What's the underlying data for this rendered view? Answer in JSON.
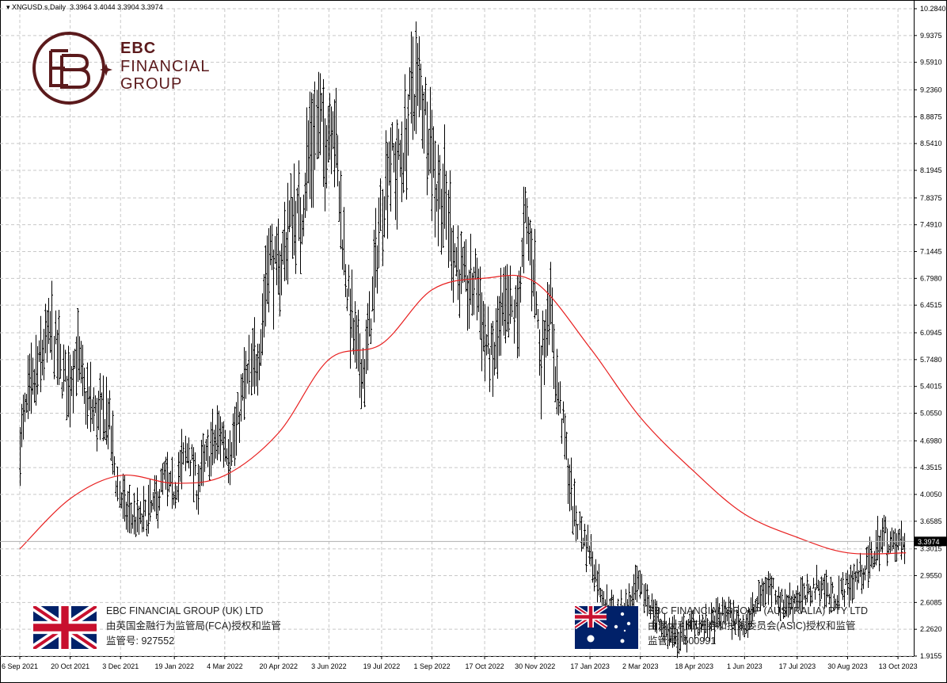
{
  "header": {
    "symbol": "XNGUSD.s,Daily",
    "ohlc": "3.3964 3.4044 3.3904 3.3974"
  },
  "brand": {
    "line1": "EBC",
    "line2": "FINANCIAL",
    "line3": "GROUP",
    "color": "#5b1a1c"
  },
  "regulators": [
    {
      "name": "EBC FINANCIAL GROUP (UK) LTD",
      "text": "由英国金融行为监管局(FCA)授权和监管",
      "license": "监管号: 927552",
      "flag": "uk-flag-icon"
    },
    {
      "name": "EBC FINANCIAL GROUP (AUSTRALIA) PTY LTD",
      "text": "由澳大利亚证券和投资委员会(ASIC)授权和监管",
      "license": "监管号: 500991",
      "flag": "australia-flag-icon"
    }
  ],
  "chart_data": {
    "type": "candlestick",
    "title": "XNGUSD.s,Daily",
    "y_axis_side": "right",
    "ylim": [
      1.9155,
      10.284
    ],
    "y_ticks": [
      "10.2840",
      "9.9375",
      "9.5910",
      "9.2360",
      "8.8875",
      "8.5410",
      "8.1945",
      "7.8375",
      "7.4910",
      "7.1445",
      "6.7980",
      "6.4515",
      "6.0945",
      "5.7480",
      "5.4015",
      "5.0550",
      "4.6980",
      "4.3515",
      "4.0050",
      "3.6585",
      "3.3015",
      "2.9550",
      "2.6085",
      "2.2620",
      "1.9155"
    ],
    "x_ticks": [
      "6 Sep 2021",
      "20 Oct 2021",
      "3 Dec 2021",
      "19 Jan 2022",
      "4 Mar 2022",
      "20 Apr 2022",
      "3 Jun 2022",
      "19 Jul 2022",
      "1 Sep 2022",
      "17 Oct 2022",
      "30 Nov 2022",
      "17 Jan 2023",
      "2 Mar 2023",
      "18 Apr 2023",
      "1 Jun 2023",
      "17 Jul 2023",
      "30 Aug 2023",
      "13 Oct 2023"
    ],
    "last_price": "3.3974",
    "grid": true,
    "price_series": [
      [
        "6 Sep 2021",
        4.7
      ],
      [
        "13 Sep 2021",
        5.2
      ],
      [
        "20 Sep 2021",
        5.5
      ],
      [
        "27 Sep 2021",
        5.9
      ],
      [
        "4 Oct 2021",
        6.1
      ],
      [
        "11 Oct 2021",
        5.6
      ],
      [
        "18 Oct 2021",
        5.4
      ],
      [
        "25 Oct 2021",
        5.85
      ],
      [
        "1 Nov 2021",
        5.3
      ],
      [
        "8 Nov 2021",
        5.1
      ],
      [
        "15 Nov 2021",
        5.0
      ],
      [
        "22 Nov 2021",
        5.05
      ],
      [
        "29 Nov 2021",
        4.2
      ],
      [
        "6 Dec 2021",
        3.8
      ],
      [
        "13 Dec 2021",
        3.7
      ],
      [
        "20 Dec 2021",
        3.65
      ],
      [
        "27 Dec 2021",
        3.75
      ],
      [
        "3 Jan 2022",
        3.9
      ],
      [
        "10 Jan 2022",
        4.2
      ],
      [
        "17 Jan 2022",
        4.0
      ],
      [
        "24 Jan 2022",
        4.3
      ],
      [
        "31 Jan 2022",
        4.6
      ],
      [
        "7 Feb 2022",
        4.1
      ],
      [
        "14 Feb 2022",
        4.4
      ],
      [
        "21 Feb 2022",
        4.6
      ],
      [
        "28 Feb 2022",
        4.8
      ],
      [
        "7 Mar 2022",
        4.6
      ],
      [
        "14 Mar 2022",
        4.8
      ],
      [
        "21 Mar 2022",
        5.4
      ],
      [
        "28 Mar 2022",
        5.6
      ],
      [
        "4 Apr 2022",
        6.0
      ],
      [
        "11 Apr 2022",
        7.2
      ],
      [
        "18 Apr 2022",
        6.8
      ],
      [
        "25 Apr 2022",
        7.2
      ],
      [
        "2 May 2022",
        7.7
      ],
      [
        "9 May 2022",
        7.5
      ],
      [
        "16 May 2022",
        8.4
      ],
      [
        "23 May 2022",
        8.8
      ],
      [
        "30 May 2022",
        8.6
      ],
      [
        "6 Jun 2022",
        9.0
      ],
      [
        "13 Jun 2022",
        7.6
      ],
      [
        "20 Jun 2022",
        6.5
      ],
      [
        "27 Jun 2022",
        5.8
      ],
      [
        "4 Jul 2022",
        5.6
      ],
      [
        "11 Jul 2022",
        6.5
      ],
      [
        "18 Jul 2022",
        7.6
      ],
      [
        "25 Jul 2022",
        8.4
      ],
      [
        "1 Aug 2022",
        8.2
      ],
      [
        "8 Aug 2022",
        8.5
      ],
      [
        "15 Aug 2022",
        9.3
      ],
      [
        "22 Aug 2022",
        9.2
      ],
      [
        "29 Aug 2022",
        8.8
      ],
      [
        "5 Sep 2022",
        8.0
      ],
      [
        "12 Sep 2022",
        7.8
      ],
      [
        "19 Sep 2022",
        7.2
      ],
      [
        "26 Sep 2022",
        6.8
      ],
      [
        "3 Oct 2022",
        6.6
      ],
      [
        "10 Oct 2022",
        6.8
      ],
      [
        "17 Oct 2022",
        6.0
      ],
      [
        "24 Oct 2022",
        5.7
      ],
      [
        "31 Oct 2022",
        6.2
      ],
      [
        "7 Nov 2022",
        6.4
      ],
      [
        "14 Nov 2022",
        6.3
      ],
      [
        "21 Nov 2022",
        7.5
      ],
      [
        "28 Nov 2022",
        7.0
      ],
      [
        "5 Dec 2022",
        5.7
      ],
      [
        "12 Dec 2022",
        6.6
      ],
      [
        "19 Dec 2022",
        5.4
      ],
      [
        "26 Dec 2022",
        4.7
      ],
      [
        "2 Jan 2023",
        3.8
      ],
      [
        "9 Jan 2023",
        3.5
      ],
      [
        "16 Jan 2023",
        3.3
      ],
      [
        "23 Jan 2023",
        2.9
      ],
      [
        "30 Jan 2023",
        2.6
      ],
      [
        "6 Feb 2023",
        2.5
      ],
      [
        "13 Feb 2023",
        2.55
      ],
      [
        "20 Feb 2023",
        2.6
      ],
      [
        "27 Feb 2023",
        2.8
      ],
      [
        "6 Mar 2023",
        2.7
      ],
      [
        "13 Mar 2023",
        2.5
      ],
      [
        "20 Mar 2023",
        2.3
      ],
      [
        "27 Mar 2023",
        2.2
      ],
      [
        "3 Apr 2023",
        2.15
      ],
      [
        "10 Apr 2023",
        2.2
      ],
      [
        "17 Apr 2023",
        2.35
      ],
      [
        "24 Apr 2023",
        2.3
      ],
      [
        "1 May 2023",
        2.3
      ],
      [
        "8 May 2023",
        2.4
      ],
      [
        "15 May 2023",
        2.5
      ],
      [
        "22 May 2023",
        2.4
      ],
      [
        "29 May 2023",
        2.3
      ],
      [
        "5 Jun 2023",
        2.4
      ],
      [
        "12 Jun 2023",
        2.6
      ],
      [
        "19 Jun 2023",
        2.8
      ],
      [
        "26 Jun 2023",
        2.8
      ],
      [
        "3 Jul 2023",
        2.6
      ],
      [
        "10 Jul 2023",
        2.6
      ],
      [
        "17 Jul 2023",
        2.7
      ],
      [
        "24 Jul 2023",
        2.65
      ],
      [
        "31 Jul 2023",
        2.8
      ],
      [
        "7 Aug 2023",
        2.85
      ],
      [
        "14 Aug 2023",
        2.7
      ],
      [
        "21 Aug 2023",
        2.7
      ],
      [
        "28 Aug 2023",
        2.8
      ],
      [
        "4 Sep 2023",
        2.9
      ],
      [
        "11 Sep 2023",
        3.0
      ],
      [
        "18 Sep 2023",
        3.1
      ],
      [
        "25 Sep 2023",
        3.35
      ],
      [
        "2 Oct 2023",
        3.5
      ],
      [
        "9 Oct 2023",
        3.3
      ],
      [
        "16 Oct 2023",
        3.4
      ],
      [
        "20 Oct 2023",
        3.4
      ]
    ],
    "moving_average": {
      "color": "#e82020",
      "points": [
        [
          "6 Sep 2021",
          3.3
        ],
        [
          "20 Oct 2021",
          3.95
        ],
        [
          "3 Dec 2021",
          4.25
        ],
        [
          "19 Jan 2022",
          4.15
        ],
        [
          "4 Mar 2022",
          4.25
        ],
        [
          "20 Apr 2022",
          4.8
        ],
        [
          "3 Jun 2022",
          5.75
        ],
        [
          "19 Jul 2022",
          5.95
        ],
        [
          "1 Sep 2022",
          6.65
        ],
        [
          "17 Oct 2022",
          6.8
        ],
        [
          "30 Nov 2022",
          6.75
        ],
        [
          "17 Jan 2023",
          5.9
        ],
        [
          "2 Mar 2023",
          5.0
        ],
        [
          "18 Apr 2023",
          4.3
        ],
        [
          "1 Jun 2023",
          3.75
        ],
        [
          "17 Jul 2023",
          3.45
        ],
        [
          "30 Aug 2023",
          3.25
        ],
        [
          "20 Oct 2023",
          3.25
        ]
      ]
    }
  }
}
